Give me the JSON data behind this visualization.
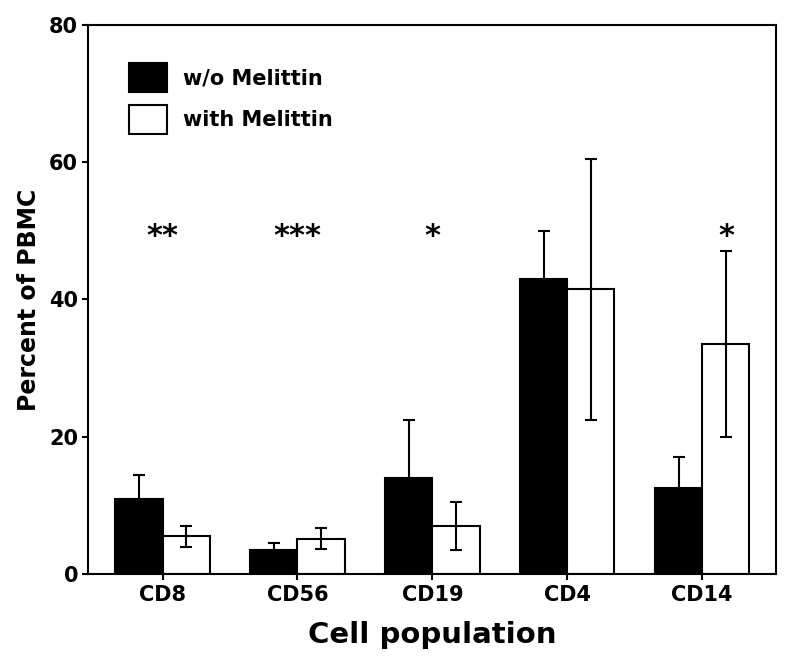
{
  "categories": [
    "CD8",
    "CD56",
    "CD19",
    "CD4",
    "CD14"
  ],
  "without_melittin": [
    11.0,
    3.5,
    14.0,
    43.0,
    12.5
  ],
  "with_melittin": [
    5.5,
    5.2,
    7.0,
    41.5,
    33.5
  ],
  "without_err": [
    3.5,
    1.0,
    8.5,
    7.0,
    4.5
  ],
  "with_err": [
    1.5,
    1.5,
    3.5,
    19.0,
    13.5
  ],
  "significance": [
    "**",
    "***",
    "*",
    "",
    "*"
  ],
  "sig_y": [
    47,
    47,
    47,
    0,
    47
  ],
  "sig_x_offset": [
    0,
    0,
    0,
    0,
    0.18
  ],
  "ylabel": "Percent of PBMC",
  "xlabel": "Cell population",
  "ylim": [
    0,
    80
  ],
  "yticks": [
    0,
    20,
    40,
    60,
    80
  ],
  "legend_labels": [
    "w/o Melittin",
    "with Melittin"
  ],
  "bar_colors": [
    "#000000",
    "#ffffff"
  ],
  "bar_edgecolor": "#000000",
  "background_color": "#ffffff",
  "bar_width": 0.35,
  "sig_fontsize": 22,
  "tick_fontsize": 15,
  "legend_fontsize": 15,
  "xlabel_fontsize": 21,
  "ylabel_fontsize": 17
}
